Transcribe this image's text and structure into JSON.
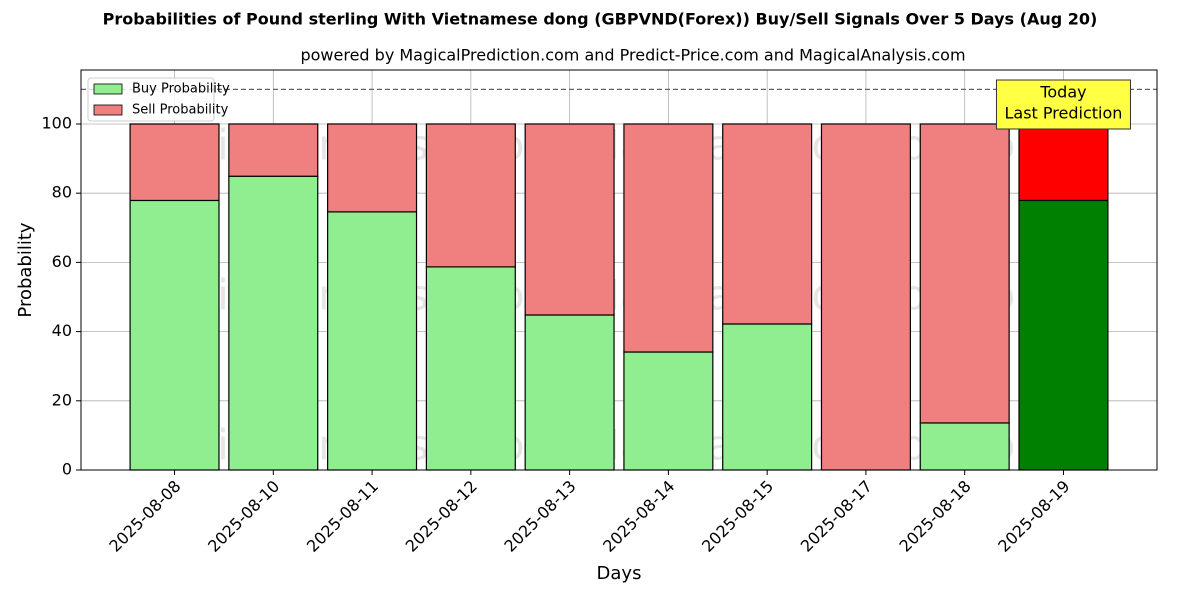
{
  "chart_data": {
    "type": "stacked_bar",
    "title": "Probabilities of Pound sterling With Vietnamese dong (GBPVND(Forex)) Buy/Sell Signals Over 5 Days (Aug 20)",
    "subtitle": "powered by MagicalPrediction.com and Predict-Price.com and MagicalAnalysis.com",
    "xlabel": "Days",
    "ylabel": "Probability",
    "categories": [
      "2025-08-08",
      "2025-08-10",
      "2025-08-11",
      "2025-08-12",
      "2025-08-13",
      "2025-08-14",
      "2025-08-15",
      "2025-08-17",
      "2025-08-18",
      "2025-08-19"
    ],
    "series": [
      {
        "name": "Buy Probability",
        "color": "#90ee90",
        "colors": [
          "#90ee90",
          "#90ee90",
          "#90ee90",
          "#90ee90",
          "#90ee90",
          "#90ee90",
          "#90ee90",
          "#90ee90",
          "#90ee90",
          "#008000"
        ],
        "values": [
          77.9,
          84.9,
          74.6,
          58.7,
          44.8,
          34.1,
          42.2,
          0,
          13.6,
          77.9
        ]
      },
      {
        "name": "Sell Probability",
        "color": "#f08080",
        "colors": [
          "#f08080",
          "#f08080",
          "#f08080",
          "#f08080",
          "#f08080",
          "#f08080",
          "#f08080",
          "#f08080",
          "#f08080",
          "#ff0000"
        ],
        "values": [
          22.1,
          15.1,
          25.4,
          41.3,
          55.2,
          65.9,
          57.8,
          100,
          86.4,
          22.1
        ]
      }
    ],
    "ylim": [
      0,
      115.6
    ],
    "yticks": [
      0,
      20,
      40,
      60,
      80,
      100
    ],
    "hline": 110,
    "grid": true,
    "legend": "upper left",
    "annotation": [
      "Today",
      "Last Prediction"
    ],
    "watermarks": [
      "MagicalAnalysis.com",
      "MagicalPrediction.com"
    ]
  }
}
